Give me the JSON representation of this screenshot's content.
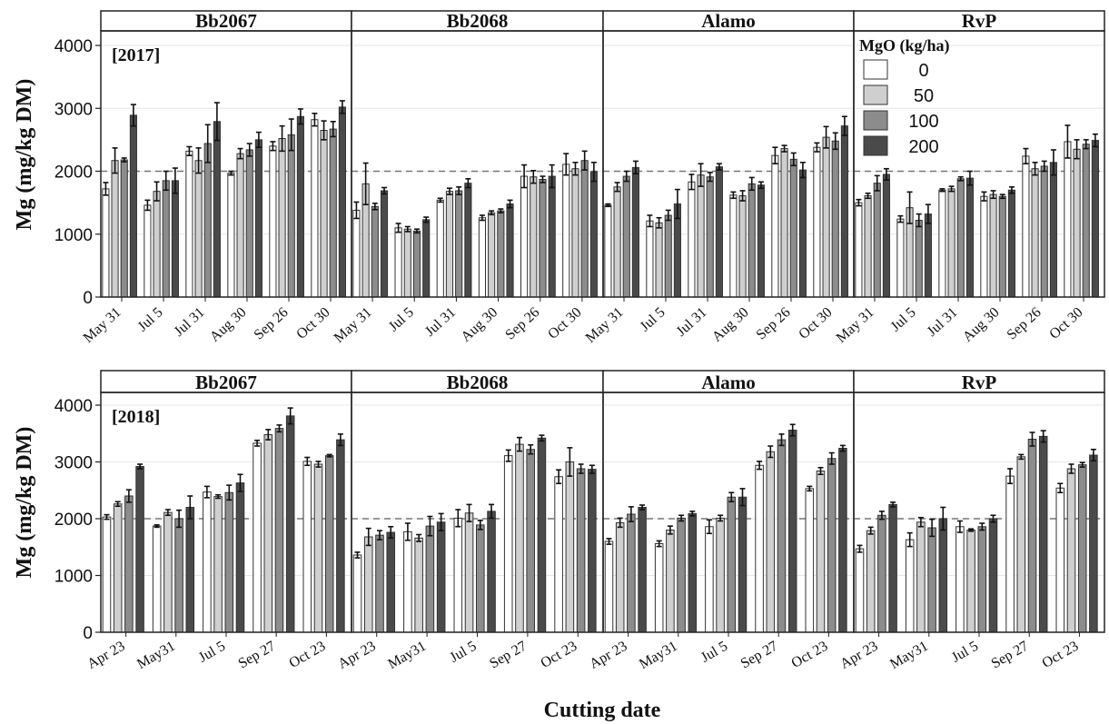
{
  "chart_data": {
    "type": "bar",
    "xlabel": "Cutting date",
    "ylabel": "Mg (mg/kg DM)",
    "ylim": [
      0,
      4200
    ],
    "yticks": [
      0,
      1000,
      2000,
      3000,
      4000
    ],
    "reference_line": 2000,
    "reference_line_style": "dashed",
    "series_names": [
      "0",
      "50",
      "100",
      "200"
    ],
    "series_colors": [
      "#ffffff",
      "#cfcfcf",
      "#8c8c8c",
      "#4a4a4a"
    ],
    "legend": {
      "title": "MgO (kg/ha)",
      "location": "top-right, inside 2017 Alamo/RvP panels",
      "entries": [
        "0",
        "50",
        "100",
        "200"
      ]
    },
    "panels": [
      {
        "year_label": "[2017]",
        "panels_labels": [
          "Bb2067",
          "Bb2068",
          "Alamo",
          "RvP"
        ],
        "categories": [
          "May 31",
          "Jul 5",
          "Jul 31",
          "Aug 30",
          "Sep 26",
          "Oct 30"
        ],
        "facets": [
          {
            "title": "Bb2067",
            "values": [
              [
                1720,
                2170,
                2180,
                2890
              ],
              [
                1460,
                1680,
                1850,
                1850
              ],
              [
                2320,
                2170,
                2440,
                2790
              ],
              [
                1970,
                2280,
                2340,
                2500
              ],
              [
                2400,
                2520,
                2580,
                2870
              ],
              [
                2820,
                2650,
                2670,
                3020
              ]
            ],
            "errors": [
              [
                100,
                200,
                30,
                170
              ],
              [
                80,
                150,
                150,
                200
              ],
              [
                70,
                200,
                300,
                300
              ],
              [
                30,
                80,
                100,
                120
              ],
              [
                70,
                200,
                250,
                120
              ],
              [
                100,
                150,
                120,
                100
              ]
            ]
          },
          {
            "title": "Bb2068",
            "values": [
              [
                1380,
                1800,
                1440,
                1690
              ],
              [
                1100,
                1080,
                1050,
                1230
              ],
              [
                1540,
                1680,
                1690,
                1810
              ],
              [
                1260,
                1340,
                1370,
                1480
              ],
              [
                1920,
                1910,
                1870,
                1920
              ],
              [
                2110,
                2040,
                2170,
                1990
              ]
            ],
            "errors": [
              [
                130,
                330,
                50,
                50
              ],
              [
                70,
                40,
                30,
                40
              ],
              [
                30,
                50,
                60,
                70
              ],
              [
                40,
                30,
                30,
                60
              ],
              [
                180,
                100,
                50,
                180
              ],
              [
                170,
                100,
                150,
                150
              ]
            ]
          },
          {
            "title": "Alamo",
            "values": [
              [
                1460,
                1750,
                1920,
                2060
              ],
              [
                1210,
                1180,
                1300,
                1480
              ],
              [
                1830,
                1940,
                1910,
                2070
              ],
              [
                1620,
                1610,
                1800,
                1780
              ],
              [
                2250,
                2360,
                2190,
                2020
              ],
              [
                2380,
                2540,
                2480,
                2720
              ]
            ],
            "errors": [
              [
                20,
                70,
                80,
                100
              ],
              [
                90,
                80,
                80,
                230
              ],
              [
                120,
                180,
                70,
                50
              ],
              [
                50,
                80,
                100,
                50
              ],
              [
                130,
                50,
                100,
                120
              ],
              [
                70,
                170,
                130,
                150
              ]
            ]
          },
          {
            "title": "RvP",
            "values": [
              [
                1500,
                1610,
                1810,
                1950
              ],
              [
                1240,
                1420,
                1220,
                1320
              ],
              [
                1700,
                1720,
                1880,
                1890
              ],
              [
                1600,
                1630,
                1600,
                1700
              ],
              [
                2240,
                2040,
                2080,
                2140
              ],
              [
                2470,
                2350,
                2430,
                2490
              ]
            ],
            "errors": [
              [
                50,
                40,
                120,
                90
              ],
              [
                50,
                250,
                100,
                150
              ],
              [
                20,
                40,
                30,
                110
              ],
              [
                70,
                60,
                30,
                50
              ],
              [
                120,
                100,
                80,
                200
              ],
              [
                260,
                150,
                70,
                100
              ]
            ]
          }
        ]
      },
      {
        "year_label": "[2018]",
        "panels_labels": [
          "Bb2067",
          "Bb2068",
          "Alamo",
          "RvP"
        ],
        "categories": [
          "Apr 23",
          "May31",
          "Jul 5",
          "Sep 27",
          "Oct 23"
        ],
        "facets": [
          {
            "title": "Bb2067",
            "values": [
              [
                2030,
                2260,
                2400,
                2920
              ],
              [
                1870,
                2110,
                2000,
                2200
              ],
              [
                2470,
                2390,
                2460,
                2630
              ],
              [
                3330,
                3480,
                3590,
                3810
              ],
              [
                3010,
                2960,
                3110,
                3390
              ]
            ],
            "errors": [
              [
                40,
                40,
                110,
                40
              ],
              [
                20,
                50,
                150,
                200
              ],
              [
                100,
                30,
                130,
                150
              ],
              [
                50,
                90,
                60,
                140
              ],
              [
                70,
                50,
                20,
                100
              ]
            ]
          },
          {
            "title": "Bb2068",
            "values": [
              [
                1360,
                1680,
                1710,
                1760
              ],
              [
                1770,
                1660,
                1870,
                1940
              ],
              [
                2010,
                2100,
                1890,
                2130
              ],
              [
                3110,
                3310,
                3220,
                3420
              ],
              [
                2740,
                3000,
                2880,
                2870
              ]
            ],
            "errors": [
              [
                50,
                150,
                80,
                100
              ],
              [
                150,
                60,
                170,
                150
              ],
              [
                150,
                150,
                80,
                120
              ],
              [
                100,
                120,
                80,
                50
              ],
              [
                120,
                250,
                80,
                70
              ]
            ]
          },
          {
            "title": "Alamo",
            "values": [
              [
                1600,
                1930,
                2080,
                2200
              ],
              [
                1560,
                1800,
                2010,
                2090
              ],
              [
                1860,
                2010,
                2380,
                2380
              ],
              [
                2940,
                3180,
                3390,
                3560
              ],
              [
                2530,
                2840,
                3060,
                3240
              ]
            ],
            "errors": [
              [
                50,
                80,
                130,
                40
              ],
              [
                50,
                70,
                50,
                40
              ],
              [
                120,
                50,
                80,
                150
              ],
              [
                70,
                100,
                100,
                100
              ],
              [
                40,
                60,
                100,
                50
              ]
            ]
          },
          {
            "title": "RvP",
            "values": [
              [
                1470,
                1790,
                2060,
                2250
              ],
              [
                1630,
                1940,
                1840,
                2000
              ],
              [
                1860,
                1800,
                1860,
                2000
              ],
              [
                2750,
                3090,
                3400,
                3450
              ],
              [
                2540,
                2880,
                2950,
                3120
              ]
            ],
            "errors": [
              [
                60,
                60,
                70,
                40
              ],
              [
                120,
                80,
                150,
                200
              ],
              [
                100,
                20,
                60,
                60
              ],
              [
                130,
                40,
                120,
                100
              ],
              [
                80,
                80,
                40,
                100
              ]
            ]
          }
        ]
      }
    ]
  }
}
